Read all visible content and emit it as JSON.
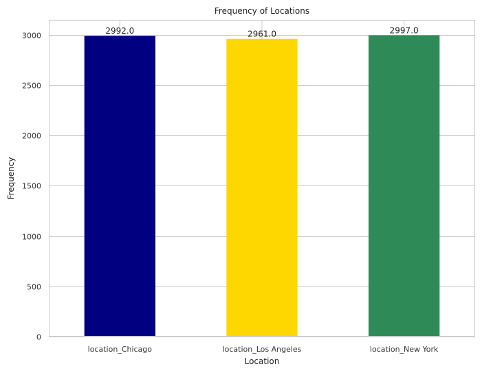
{
  "chart_data": {
    "type": "bar",
    "title": "Frequency of Locations",
    "xlabel": "Location",
    "ylabel": "Frequency",
    "categories": [
      "location_Chicago",
      "location_Los Angeles",
      "location_New York"
    ],
    "values": [
      2992,
      2961,
      2997
    ],
    "value_labels": [
      "2992.0",
      "2961.0",
      "2997.0"
    ],
    "colors": [
      "#000080",
      "#ffd700",
      "#2e8b57"
    ],
    "ylim": [
      0,
      3150
    ],
    "yticks": [
      0,
      500,
      1000,
      1500,
      2000,
      2500,
      3000
    ],
    "grid": true,
    "legend": false
  }
}
